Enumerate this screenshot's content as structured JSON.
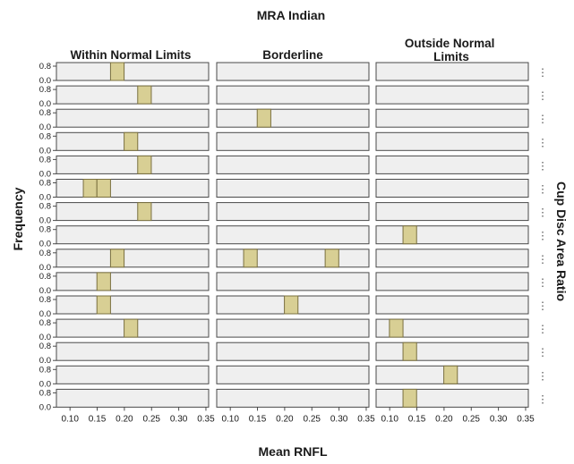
{
  "chart_data": {
    "type": "bar",
    "title": "MRA Indian",
    "xlabel": "Mean RNFL",
    "ylabel": "Frequency",
    "row_panel_label": "Cup Disc Area Ratio",
    "column_panels": [
      "Within Normal Limits",
      "Borderline",
      "Outside Normal Limits"
    ],
    "y_tick_labels": [
      "0.8",
      "0.0"
    ],
    "x_ticks": [
      "0.10",
      "0.15",
      "0.20",
      "0.25",
      "0.30",
      "0.35"
    ],
    "xlim": [
      0.075,
      0.355
    ],
    "ylim": [
      0,
      1.0
    ],
    "bin_width": 0.025,
    "row_dots": "⋮",
    "series": [
      {
        "name": "Within Normal Limits",
        "bars": [
          {
            "row": 1,
            "x": 0.187,
            "count": 1
          },
          {
            "row": 2,
            "x": 0.237,
            "count": 1
          },
          {
            "row": 4,
            "x": 0.212,
            "count": 1
          },
          {
            "row": 5,
            "x": 0.237,
            "count": 1
          },
          {
            "row": 6,
            "x": 0.137,
            "count": 1
          },
          {
            "row": 6,
            "x": 0.162,
            "count": 1
          },
          {
            "row": 7,
            "x": 0.237,
            "count": 1
          },
          {
            "row": 9,
            "x": 0.187,
            "count": 1
          },
          {
            "row": 10,
            "x": 0.162,
            "count": 1
          },
          {
            "row": 11,
            "x": 0.162,
            "count": 1
          },
          {
            "row": 12,
            "x": 0.212,
            "count": 1
          }
        ]
      },
      {
        "name": "Borderline",
        "bars": [
          {
            "row": 3,
            "x": 0.162,
            "count": 1
          },
          {
            "row": 9,
            "x": 0.137,
            "count": 1
          },
          {
            "row": 9,
            "x": 0.287,
            "count": 1
          },
          {
            "row": 11,
            "x": 0.212,
            "count": 1
          }
        ]
      },
      {
        "name": "Outside Normal Limits",
        "bars": [
          {
            "row": 8,
            "x": 0.137,
            "count": 1
          },
          {
            "row": 12,
            "x": 0.112,
            "count": 1
          },
          {
            "row": 13,
            "x": 0.137,
            "count": 1
          },
          {
            "row": 14,
            "x": 0.212,
            "count": 1
          },
          {
            "row": 15,
            "x": 0.137,
            "count": 1
          }
        ]
      }
    ],
    "rows": 15,
    "colors": {
      "panel_bg": "#efefef",
      "bar_fill": "#d8cf94",
      "bar_stroke": "#7a7040",
      "text": "#1a1a1a"
    }
  }
}
